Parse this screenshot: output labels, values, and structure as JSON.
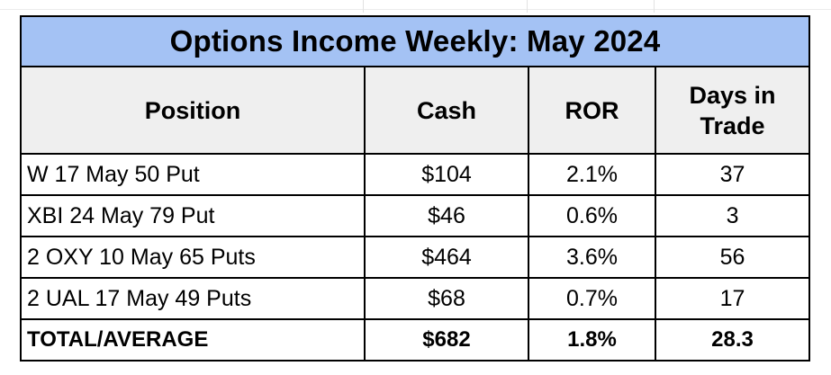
{
  "table": {
    "title": "Options Income Weekly: May 2024",
    "headers": {
      "position": "Position",
      "cash": "Cash",
      "ror": "ROR",
      "days_line1": "Days in",
      "days_line2": "Trade"
    },
    "rows": [
      {
        "position": "W 17 May 50 Put",
        "cash": "$104",
        "ror": "2.1%",
        "days": "37"
      },
      {
        "position": "XBI 24 May 79 Put",
        "cash": "$46",
        "ror": "0.6%",
        "days": "3"
      },
      {
        "position": "2 OXY 10 May 65 Puts",
        "cash": "$464",
        "ror": "3.6%",
        "days": "56"
      },
      {
        "position": "2 UAL 17 May 49 Puts",
        "cash": "$68",
        "ror": "0.7%",
        "days": "17"
      }
    ],
    "total": {
      "position": "TOTAL/AVERAGE",
      "cash": "$682",
      "ror": "1.8%",
      "days": "28.3"
    }
  },
  "colors": {
    "title_background": "#a4c2f4",
    "header_background": "#efefef",
    "border": "#000000"
  }
}
